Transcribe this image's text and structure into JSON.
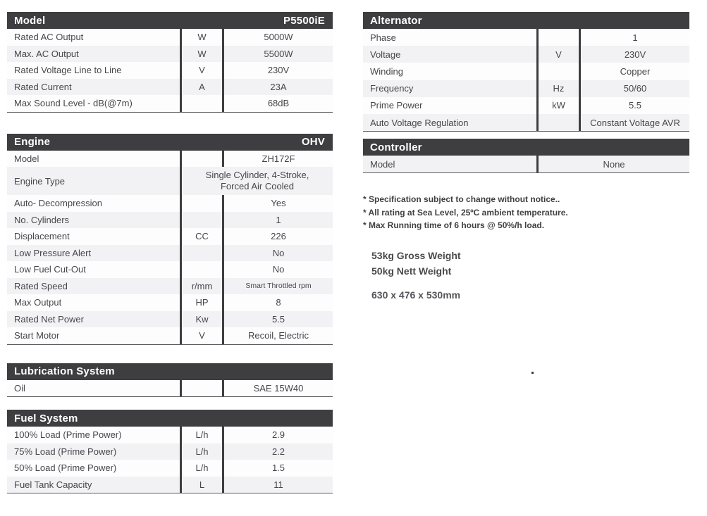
{
  "colors": {
    "header_bg": "#3e3e40",
    "stripe": "#f2f2f5",
    "divider": "#3e3e40",
    "text": "#47474a"
  },
  "tables": {
    "model": {
      "title": "Model",
      "title_right": "P5500iE",
      "rows": [
        {
          "label": "Rated AC Output",
          "unit": "W",
          "value": "5000W"
        },
        {
          "label": "Max. AC Output",
          "unit": "W",
          "value": "5500W"
        },
        {
          "label": "Rated Voltage Line to Line",
          "unit": "V",
          "value": "230V"
        },
        {
          "label": "Rated Current",
          "unit": "A",
          "value": "23A"
        },
        {
          "label": "Max Sound Level -  dB(@7m)",
          "unit": "",
          "value": "68dB"
        }
      ]
    },
    "engine": {
      "title": "Engine",
      "title_right": "OHV",
      "rows": [
        {
          "label": "Model",
          "unit": "",
          "value": "ZH172F"
        },
        {
          "label": "Engine Type",
          "span": true,
          "value": "Single Cylinder, 4-Stroke,\nForced Air Cooled"
        },
        {
          "label": "Auto- Decompression",
          "unit": "",
          "value": "Yes"
        },
        {
          "label": "No. Cylinders",
          "unit": "",
          "value": "1"
        },
        {
          "label": "Displacement",
          "unit": "CC",
          "value": "226"
        },
        {
          "label": "Low Pressure Alert",
          "unit": "",
          "value": "No"
        },
        {
          "label": "Low Fuel Cut-Out",
          "unit": "",
          "value": "No"
        },
        {
          "label": "Rated Speed",
          "unit": "r/mm",
          "value": "Smart Throttled rpm",
          "small": true
        },
        {
          "label": "Max Output",
          "unit": "HP",
          "value": "8"
        },
        {
          "label": "Rated Net Power",
          "unit": "Kw",
          "value": "5.5"
        },
        {
          "label": "Start Motor",
          "unit": "V",
          "value": "Recoil, Electric"
        }
      ]
    },
    "lubrication": {
      "title": "Lubrication System",
      "title_right": "",
      "rows": [
        {
          "label": "Oil",
          "unit": "",
          "value": "SAE 15W40"
        }
      ]
    },
    "fuel": {
      "title": "Fuel System",
      "title_right": "",
      "rows": [
        {
          "label": "100% Load (Prime Power)",
          "unit": "L/h",
          "value": "2.9"
        },
        {
          "label": "75% Load (Prime Power)",
          "unit": "L/h",
          "value": "2.2"
        },
        {
          "label": "50% Load (Prime Power)",
          "unit": "L/h",
          "value": "1.5"
        },
        {
          "label": "Fuel Tank Capacity",
          "unit": "L",
          "value": "11"
        }
      ]
    },
    "alternator": {
      "title": "Alternator",
      "title_right": "",
      "rows": [
        {
          "label": "Phase",
          "unit": "",
          "value": "1"
        },
        {
          "label": "Voltage",
          "unit": "V",
          "value": "230V"
        },
        {
          "label": "Winding",
          "unit": "",
          "value": "Copper"
        },
        {
          "label": "Frequency",
          "unit": "Hz",
          "value": "50/60"
        },
        {
          "label": "Prime Power",
          "unit": "kW",
          "value": "5.5"
        },
        {
          "label": "Auto Voltage Regulation",
          "unit": "",
          "value": "Constant Voltage AVR"
        }
      ]
    },
    "controller": {
      "title": "Controller",
      "title_right": "",
      "two_col": true,
      "stripe_offset": 1,
      "rows": [
        {
          "label": "Model",
          "value": "None"
        }
      ]
    }
  },
  "notes": [
    "* Specification subject to change without notice..",
    "* All rating at Sea Level, 25ºC ambient temperature.",
    "* Max Running time of 6 hours @ 50%/h load."
  ],
  "weights": [
    "53kg Gross Weight",
    "50kg Nett Weight"
  ],
  "dimensions": "630 x 476 x 530mm"
}
